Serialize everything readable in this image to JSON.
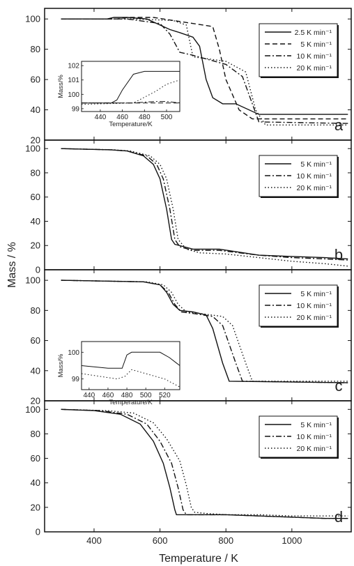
{
  "figure": {
    "ylabel": "Mass / %",
    "xlabel": "Temperature / K"
  },
  "chart_data": [
    {
      "id": "panel-a",
      "type": "line",
      "panel_label": "a",
      "xlim": [
        250,
        1180
      ],
      "ylim": [
        20,
        107
      ],
      "yticks": [
        20,
        40,
        60,
        80,
        100
      ],
      "grid": false,
      "legend_placement": "top-right",
      "series": [
        {
          "name": "2.5 K min⁻¹",
          "style": "solid",
          "x": [
            300,
            440,
            460,
            500,
            560,
            600,
            630,
            660,
            700,
            720,
            740,
            760,
            790,
            830,
            900,
            1170
          ],
          "y": [
            100,
            100,
            101,
            101,
            100,
            96,
            93,
            91,
            88,
            82,
            60,
            48,
            44,
            44,
            37,
            37
          ]
        },
        {
          "name": "5 K min⁻¹",
          "style": "dashed",
          "x": [
            300,
            470,
            500,
            580,
            640,
            700,
            760,
            780,
            800,
            840,
            880,
            1170
          ],
          "y": [
            100,
            100,
            101,
            101,
            99,
            97,
            95,
            80,
            60,
            40,
            34,
            34
          ]
        },
        {
          "name": "10 K min⁻¹",
          "style": "dashdot",
          "x": [
            300,
            470,
            500,
            600,
            630,
            660,
            700,
            800,
            850,
            880,
            900,
            1170
          ],
          "y": [
            100,
            100,
            100,
            97,
            90,
            78,
            76,
            70,
            62,
            44,
            32,
            31
          ]
        },
        {
          "name": "20 K min⁻¹",
          "style": "dotted",
          "x": [
            300,
            480,
            520,
            640,
            680,
            700,
            800,
            860,
            890,
            920,
            1170
          ],
          "y": [
            100,
            100,
            100,
            99,
            96,
            75,
            72,
            65,
            40,
            30,
            30
          ]
        }
      ],
      "inset": {
        "xlabel": "Temperature/K",
        "ylabel": "Mass/%",
        "xlim": [
          423,
          512
        ],
        "ylim": [
          98.8,
          102.3
        ],
        "xticks": [
          440,
          460,
          480,
          500
        ],
        "yticks": [
          99,
          100,
          101,
          102
        ],
        "series": [
          {
            "name": "2.5 K min⁻¹",
            "style": "solid",
            "x": [
              423,
              450,
              455,
              460,
              470,
              480,
              490,
              512
            ],
            "y": [
              99.4,
              99.4,
              99.6,
              100.3,
              101.4,
              101.6,
              101.6,
              101.6
            ]
          },
          {
            "name": "5 K min⁻¹",
            "style": "dashed",
            "x": [
              423,
              512
            ],
            "y": [
              99.4,
              99.4
            ]
          },
          {
            "name": "10 K min⁻¹",
            "style": "dashdot",
            "x": [
              423,
              470,
              480,
              490,
              500,
              512
            ],
            "y": [
              99.4,
              99.4,
              99.45,
              99.5,
              99.5,
              99.4
            ]
          },
          {
            "name": "20 K min⁻¹",
            "style": "dotted",
            "x": [
              423,
              470,
              490,
              500,
              512
            ],
            "y": [
              99.3,
              99.4,
              100.2,
              100.7,
              101
            ]
          }
        ]
      }
    },
    {
      "id": "panel-b",
      "type": "line",
      "panel_label": "b",
      "xlim": [
        250,
        1180
      ],
      "ylim": [
        0,
        107
      ],
      "yticks": [
        0,
        20,
        40,
        60,
        80,
        100
      ],
      "grid": false,
      "legend_placement": "top-right",
      "series": [
        {
          "name": "5 K min⁻¹",
          "style": "solid",
          "x": [
            300,
            450,
            500,
            550,
            580,
            600,
            620,
            635,
            645,
            700,
            780,
            900,
            1000,
            1100,
            1170
          ],
          "y": [
            100,
            99,
            98,
            94,
            87,
            75,
            50,
            25,
            21,
            17,
            17,
            12,
            11,
            10,
            9
          ]
        },
        {
          "name": "10 K min⁻¹",
          "style": "dashdot",
          "x": [
            300,
            450,
            500,
            560,
            590,
            610,
            630,
            645,
            660,
            700,
            780,
            900,
            1000,
            1100,
            1170
          ],
          "y": [
            100,
            99,
            98,
            94,
            87,
            75,
            50,
            25,
            19,
            16,
            16,
            12,
            10,
            9,
            8
          ]
        },
        {
          "name": "20 K min⁻¹",
          "style": "dotted",
          "x": [
            300,
            460,
            510,
            570,
            600,
            620,
            640,
            655,
            680,
            720,
            800,
            900,
            1000,
            1100,
            1170
          ],
          "y": [
            100,
            99,
            98,
            94,
            87,
            75,
            50,
            25,
            17,
            14,
            13,
            10,
            7,
            5,
            3
          ]
        }
      ]
    },
    {
      "id": "panel-c",
      "type": "line",
      "panel_label": "c",
      "xlim": [
        250,
        1180
      ],
      "ylim": [
        20,
        107
      ],
      "yticks": [
        20,
        40,
        60,
        80,
        100
      ],
      "grid": false,
      "legend_placement": "top-right",
      "series": [
        {
          "name": "5 K min⁻¹",
          "style": "solid",
          "x": [
            300,
            550,
            600,
            620,
            640,
            660,
            700,
            740,
            760,
            790,
            810,
            1170
          ],
          "y": [
            100,
            99,
            97,
            92,
            84,
            80,
            79,
            77,
            68,
            45,
            33,
            32
          ]
        },
        {
          "name": "10 K min⁻¹",
          "style": "dashdot",
          "x": [
            300,
            550,
            600,
            625,
            645,
            665,
            700,
            760,
            790,
            830,
            850,
            1170
          ],
          "y": [
            100,
            99,
            97,
            92,
            84,
            79,
            78,
            76,
            70,
            45,
            33,
            32
          ]
        },
        {
          "name": "20 K min⁻¹",
          "style": "dotted",
          "x": [
            300,
            560,
            610,
            635,
            655,
            680,
            720,
            790,
            820,
            860,
            880,
            1170
          ],
          "y": [
            100,
            99,
            97,
            92,
            84,
            79,
            78,
            76,
            70,
            45,
            33,
            33
          ]
        }
      ],
      "inset": {
        "xlabel": "Temperature/K",
        "ylabel": "Mass/%",
        "xlim": [
          432,
          536
        ],
        "ylim": [
          98.6,
          100.4
        ],
        "xticks": [
          440,
          460,
          480,
          500,
          520
        ],
        "yticks": [
          99,
          100
        ],
        "series": [
          {
            "name": "5 K min⁻¹",
            "style": "solid",
            "x": [
              432,
              460,
              475,
              480,
              485,
              500,
              515,
              525,
              536
            ],
            "y": [
              99.5,
              99.4,
              99.4,
              99.9,
              100,
              100,
              100,
              99.8,
              99.5
            ]
          },
          {
            "name": "20 K min⁻¹",
            "style": "dotted",
            "x": [
              432,
              470,
              478,
              485,
              500,
              520,
              536
            ],
            "y": [
              99.2,
              99.0,
              99.1,
              99.35,
              99.2,
              99.0,
              98.7
            ]
          }
        ]
      }
    },
    {
      "id": "panel-d",
      "type": "line",
      "panel_label": "d",
      "xlim": [
        250,
        1180
      ],
      "ylim": [
        0,
        107
      ],
      "yticks": [
        0,
        20,
        40,
        60,
        80,
        100
      ],
      "grid": false,
      "legend_placement": "top-right",
      "series": [
        {
          "name": "5 K min⁻¹",
          "style": "solid",
          "x": [
            300,
            400,
            480,
            540,
            580,
            610,
            630,
            645,
            650,
            700,
            800,
            900,
            1000,
            1100,
            1170
          ],
          "y": [
            100,
            99,
            96,
            88,
            74,
            56,
            36,
            18,
            14,
            14,
            14,
            13,
            12,
            11,
            11
          ]
        },
        {
          "name": "10 K min⁻¹",
          "style": "dashdot",
          "x": [
            300,
            420,
            500,
            560,
            600,
            635,
            655,
            670,
            680,
            720,
            800,
            900,
            1000,
            1100,
            1170
          ],
          "y": [
            100,
            99,
            96,
            88,
            74,
            56,
            36,
            18,
            14,
            14,
            14,
            13,
            12,
            11,
            11
          ]
        },
        {
          "name": "20 K min⁻¹",
          "style": "dotted",
          "x": [
            300,
            440,
            520,
            580,
            620,
            660,
            680,
            695,
            705,
            740,
            800,
            900,
            1000,
            1100,
            1170
          ],
          "y": [
            100,
            99,
            97,
            89,
            76,
            58,
            38,
            20,
            16,
            15,
            14,
            14,
            13,
            13,
            13
          ]
        }
      ]
    }
  ],
  "shared_x_axis": {
    "xlim": [
      250,
      1180
    ],
    "xticks": [
      400,
      600,
      800,
      1000
    ]
  }
}
